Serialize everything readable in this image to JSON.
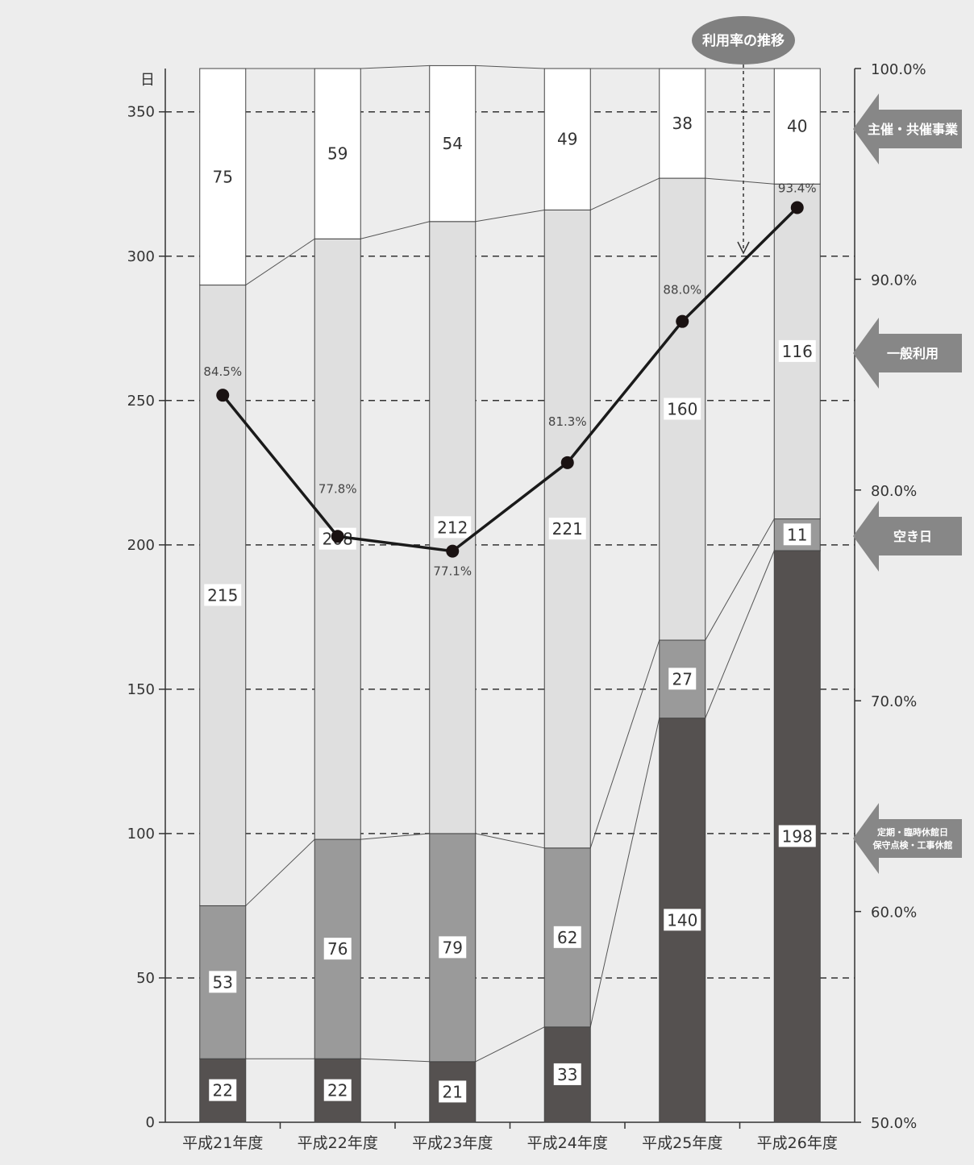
{
  "chart_data": {
    "type": "bar",
    "stacked": true,
    "categories": [
      "平成21年度",
      "平成22年度",
      "平成23年度",
      "平成24年度",
      "平成25年度",
      "平成26年度"
    ],
    "series": [
      {
        "name": "定期・臨時休館日 保守点検・工事休館",
        "values": [
          22,
          22,
          21,
          33,
          140,
          198
        ],
        "color": "#555150"
      },
      {
        "name": "空き日",
        "values": [
          53,
          76,
          79,
          62,
          27,
          11
        ],
        "color": "#9a9a9a"
      },
      {
        "name": "一般利用",
        "values": [
          215,
          208,
          212,
          221,
          160,
          116
        ],
        "color": "#dfdfdf"
      },
      {
        "name": "主催・共催事業",
        "values": [
          75,
          59,
          54,
          49,
          38,
          40
        ],
        "color": "#ffffff"
      }
    ],
    "line": {
      "name": "利用率の推移",
      "values": [
        84.5,
        77.8,
        77.1,
        81.3,
        88.0,
        93.4
      ],
      "labels": [
        "84.5%",
        "77.8%",
        "77.1%",
        "81.3%",
        "88.0%",
        "93.4%"
      ]
    },
    "y_left": {
      "unit": "日",
      "ylim": [
        0,
        365
      ],
      "ticks": [
        0,
        50,
        100,
        150,
        200,
        250,
        300,
        350
      ]
    },
    "y_right": {
      "ylim": [
        50,
        100
      ],
      "ticks": [
        50,
        60,
        70,
        80,
        90,
        100
      ],
      "tick_labels": [
        "50.0%",
        "60.0%",
        "70.0%",
        "80.0%",
        "90.0%",
        "100.0%"
      ]
    },
    "grid": "dashed horizontal",
    "legend_arrows": [
      {
        "series": 3,
        "text_lines": [
          "主催・共催事業"
        ]
      },
      {
        "series": 2,
        "text_lines": [
          "一般利用"
        ]
      },
      {
        "series": 1,
        "text_lines": [
          "空き日"
        ]
      },
      {
        "series": 0,
        "text_lines": [
          "定期・臨時休館日",
          "保守点検・工事休館"
        ]
      }
    ],
    "callout": "利用率の推移"
  }
}
